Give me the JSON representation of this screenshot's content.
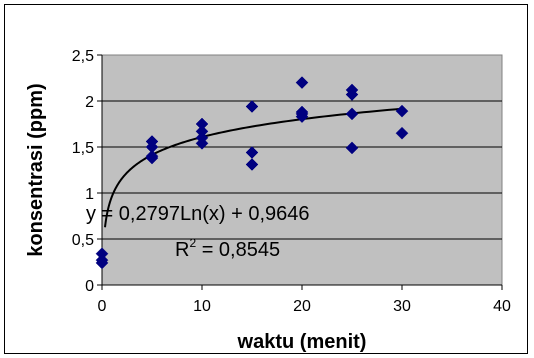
{
  "chart_data": {
    "type": "scatter",
    "title": "",
    "xlabel": "waktu (menit)",
    "ylabel": "konsentrasi (ppm)",
    "xlim": [
      0,
      40
    ],
    "ylim": [
      0,
      2.5
    ],
    "x_ticks": [
      0,
      10,
      20,
      30,
      40
    ],
    "y_ticks": [
      0,
      0.5,
      1,
      1.5,
      2,
      2.5
    ],
    "x_tick_labels": [
      "0",
      "10",
      "20",
      "30",
      "40"
    ],
    "y_tick_labels": [
      "0",
      "0,5",
      "1",
      "1,5",
      "2",
      "2,5"
    ],
    "grid": "horizontal",
    "plot_background": "#C0C0C0",
    "marker_color": "#000080",
    "marker": "diamond",
    "series": [
      {
        "points": [
          {
            "x": 0,
            "y": 0.34
          },
          {
            "x": 0,
            "y": 0.27
          },
          {
            "x": 0,
            "y": 0.24
          },
          {
            "x": 5,
            "y": 1.56
          },
          {
            "x": 5,
            "y": 1.5
          },
          {
            "x": 5,
            "y": 1.4
          },
          {
            "x": 5,
            "y": 1.38
          },
          {
            "x": 10,
            "y": 1.75
          },
          {
            "x": 10,
            "y": 1.67
          },
          {
            "x": 10,
            "y": 1.6
          },
          {
            "x": 10,
            "y": 1.54
          },
          {
            "x": 15,
            "y": 1.94
          },
          {
            "x": 15,
            "y": 1.44
          },
          {
            "x": 15,
            "y": 1.31
          },
          {
            "x": 20,
            "y": 2.2
          },
          {
            "x": 20,
            "y": 1.88
          },
          {
            "x": 20,
            "y": 1.86
          },
          {
            "x": 20,
            "y": 1.83
          },
          {
            "x": 25,
            "y": 2.12
          },
          {
            "x": 25,
            "y": 2.07
          },
          {
            "x": 25,
            "y": 1.86
          },
          {
            "x": 25,
            "y": 1.49
          },
          {
            "x": 30,
            "y": 1.89
          },
          {
            "x": 30,
            "y": 1.65
          }
        ]
      }
    ],
    "trendline": {
      "type": "logarithmic",
      "a": 0.2797,
      "b": 0.9646,
      "x_range": [
        0.3,
        30
      ],
      "color": "#000000"
    },
    "annotations": {
      "equation": "y = 0,2797Ln(x) + 0,9646",
      "r2_prefix": "R",
      "r2_exponent": "2",
      "r2_suffix": " = 0,8545"
    }
  }
}
